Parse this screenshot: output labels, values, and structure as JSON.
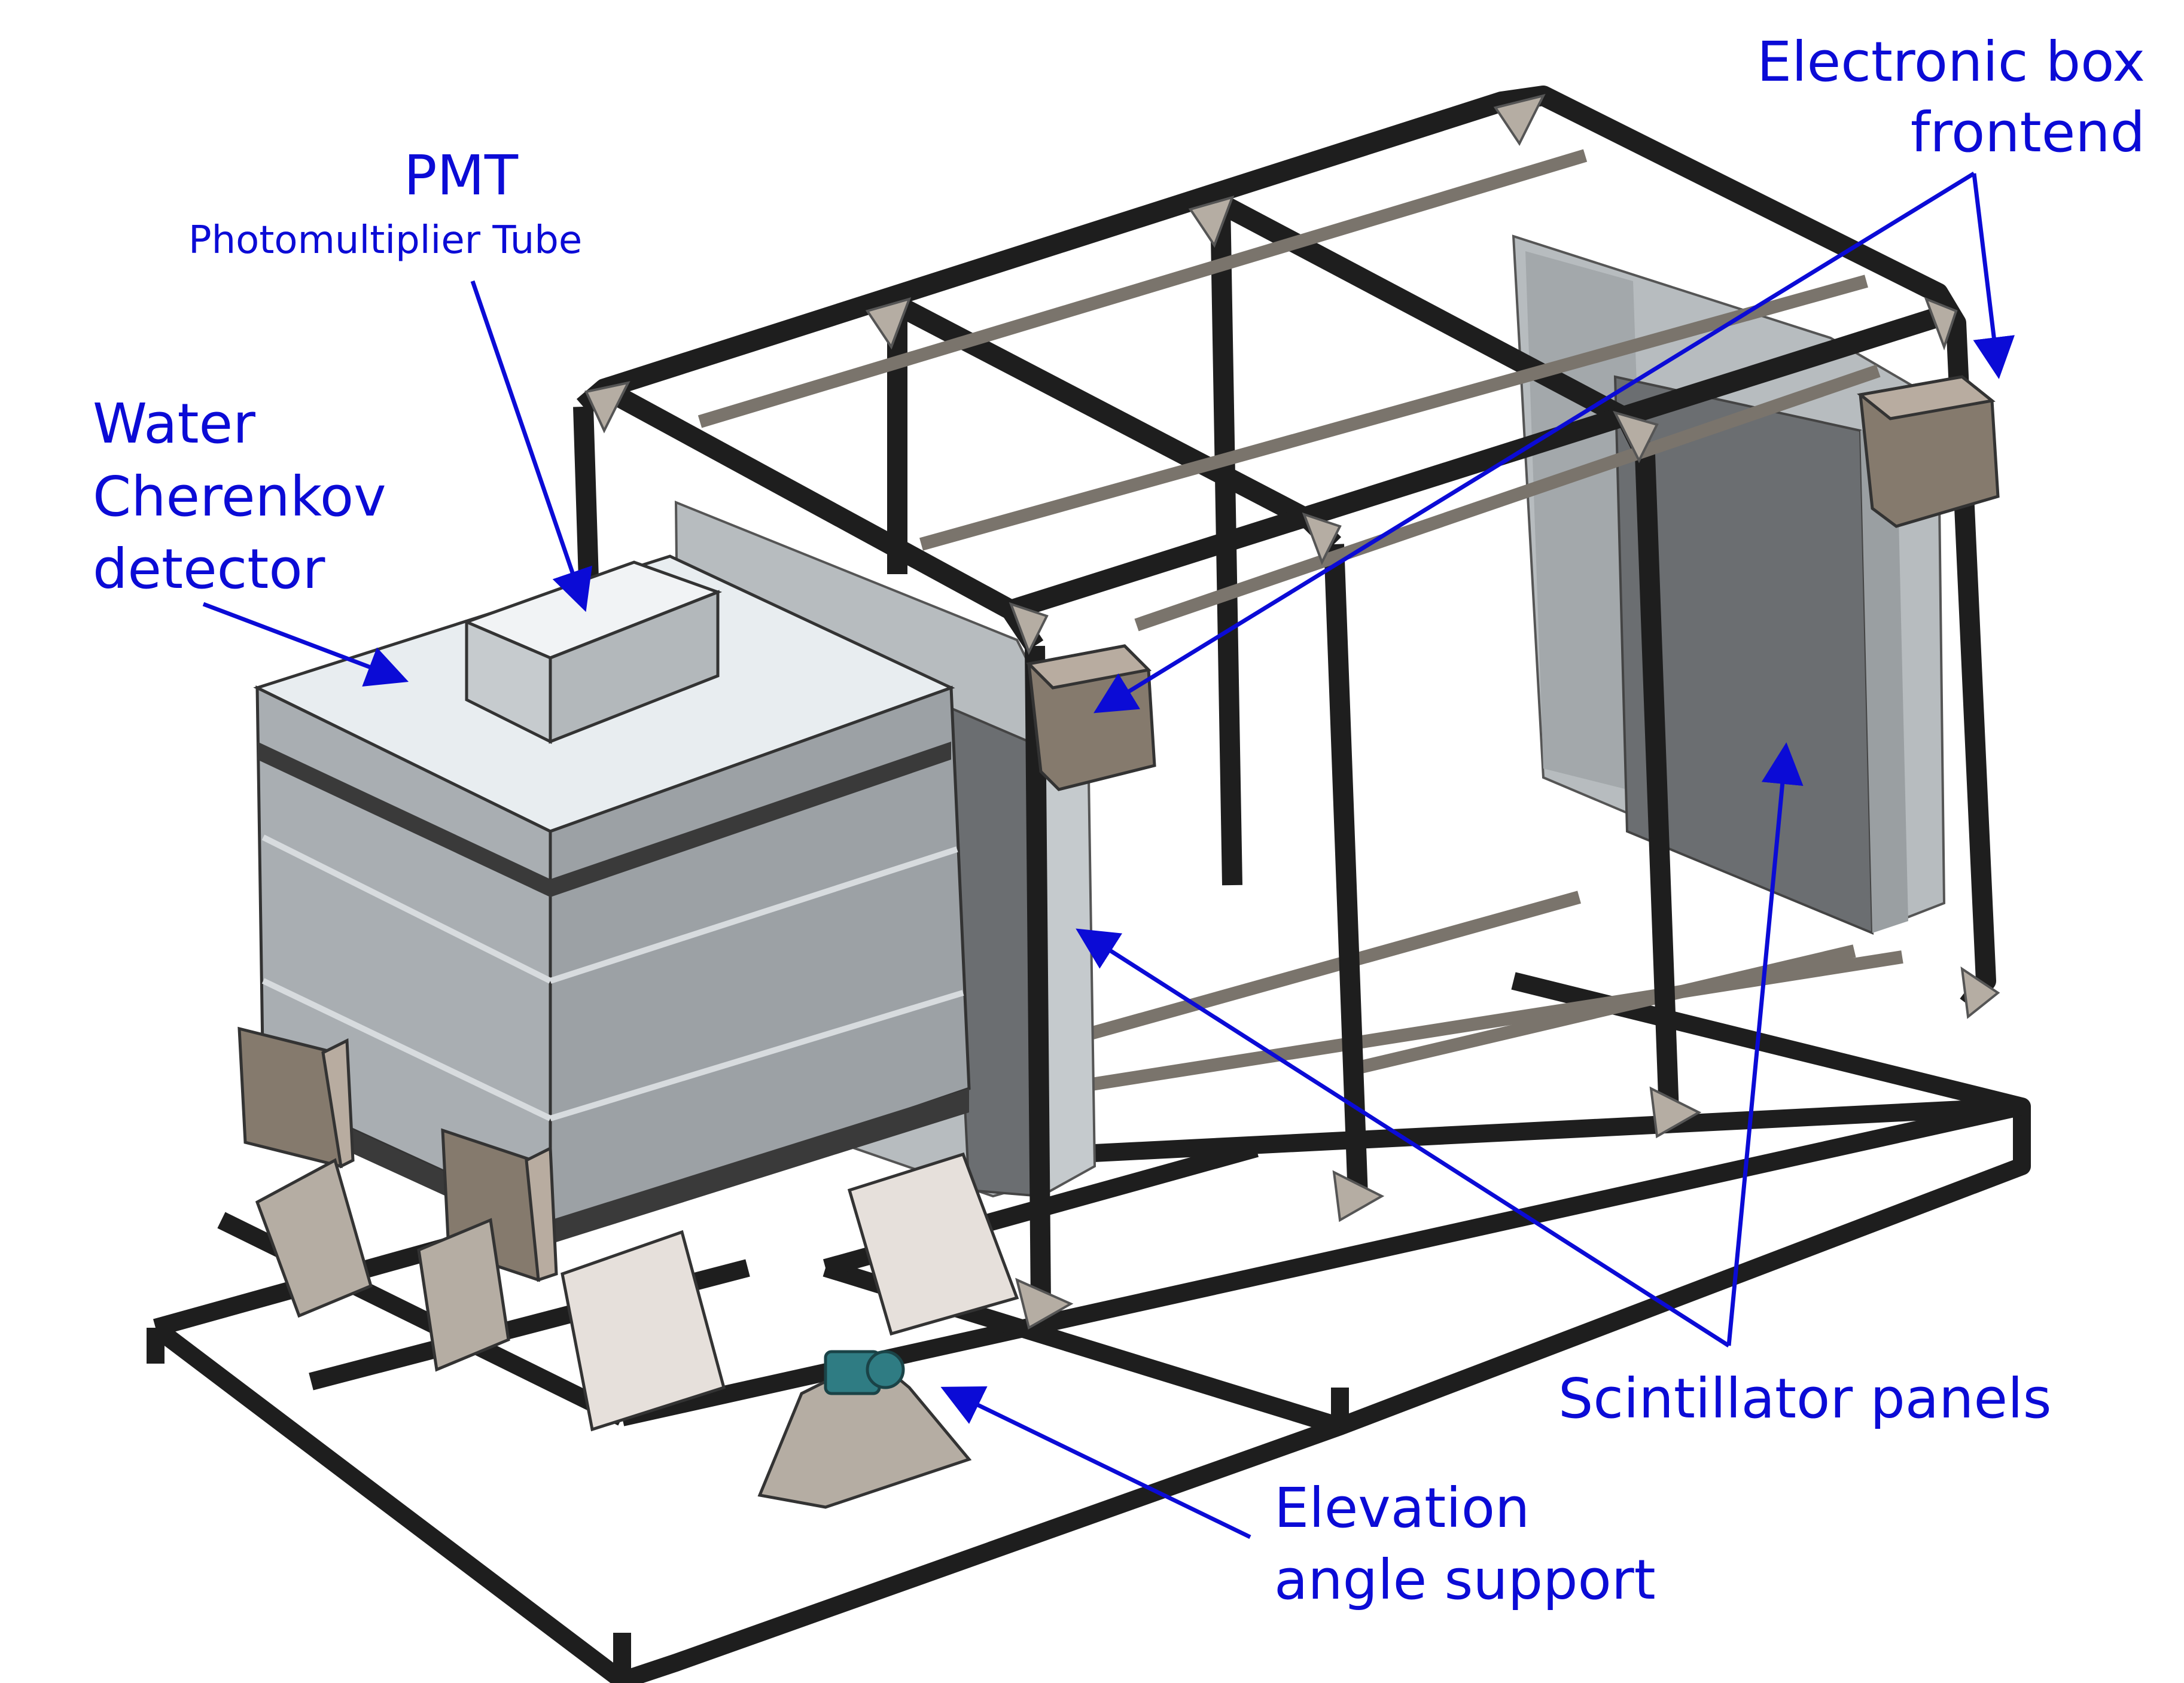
{
  "colors": {
    "label_text": "#0b0bd6",
    "arrow": "#0b0bd6",
    "frame_dark": "#1e1e1e",
    "frame_rail": "#7a746c",
    "tank_light": "#e8edf0",
    "tank_mid": "#a9aeb2",
    "tank_dark": "#7f8488",
    "panel_front": "#6b6e71",
    "panel_side": "#b7bcbf",
    "ebox": "#857a6d",
    "ebox_light": "#b8aca0",
    "gusset": "#b5ada3",
    "foot": "#e6e0db",
    "motor": "#2f7c83"
  },
  "labels": {
    "pmt_title": "PMT",
    "pmt_sub": "Photomultiplier Tube",
    "wcd_line1": "Water",
    "wcd_line2": "Cherenkov",
    "wcd_line3": "detector",
    "ebox_line1": "Electronic box",
    "ebox_line2": "frontend",
    "scint": "Scintillator panels",
    "elev_line1": "Elevation",
    "elev_line2": "angle support"
  }
}
